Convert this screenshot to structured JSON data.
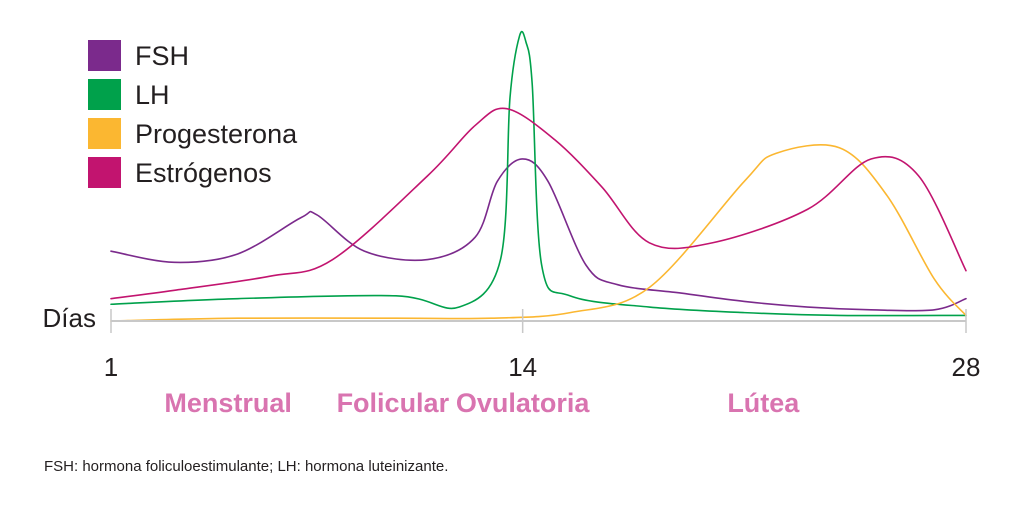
{
  "chart_data": {
    "type": "line",
    "title": "",
    "xlabel": "Días",
    "ylabel": "",
    "xlim": [
      1,
      28
    ],
    "ylim": [
      0,
      100
    ],
    "ticks": [
      {
        "value": 1,
        "label": "1"
      },
      {
        "value": 14,
        "label": "14"
      },
      {
        "value": 28,
        "label": "28"
      }
    ],
    "grid": false,
    "legend_position": "top-left",
    "series": [
      {
        "name": "FSH",
        "color": "#7b2a8c",
        "x": [
          1,
          3,
          5,
          7,
          7.5,
          9,
          11,
          12.5,
          13.2,
          14,
          14.8,
          16,
          17,
          19,
          21,
          23,
          25,
          27,
          28
        ],
        "y": [
          25,
          21,
          24,
          37,
          38,
          25,
          22,
          30,
          50,
          58,
          50,
          20,
          13,
          10,
          7,
          5,
          4,
          4,
          8
        ]
      },
      {
        "name": "LH",
        "color": "#00a14b",
        "x": [
          1,
          5,
          10,
          12,
          13.3,
          13.6,
          13.9,
          14.1,
          14.3,
          14.6,
          15.5,
          18,
          21,
          24,
          28
        ],
        "y": [
          6,
          8,
          9,
          5,
          22,
          80,
          102,
          100,
          85,
          20,
          9,
          5,
          3,
          2,
          2
        ]
      },
      {
        "name": "Progesterona",
        "color": "#fbb731",
        "x": [
          1,
          5,
          10,
          13,
          15.5,
          18,
          21,
          22,
          24,
          25.5,
          27,
          28
        ],
        "y": [
          0,
          1,
          1,
          1,
          3,
          12,
          50,
          60,
          62,
          45,
          15,
          2
        ]
      },
      {
        "name": "Estrógenos",
        "color": "#c2146f",
        "x": [
          1,
          3,
          6,
          8,
          11,
          12.5,
          13.5,
          15,
          16.5,
          18,
          20,
          23,
          25,
          26.5,
          28
        ],
        "y": [
          8,
          11,
          16,
          22,
          52,
          70,
          76,
          65,
          48,
          28,
          28,
          40,
          58,
          52,
          18
        ]
      }
    ]
  },
  "phases": [
    {
      "label": "Menstrual",
      "x": 4.7
    },
    {
      "label": "Folicular",
      "x": 9.9
    },
    {
      "label": "Ovulatoria",
      "x": 14
    },
    {
      "label": "Lútea",
      "x": 21.6
    }
  ],
  "phase_color": "#d974b0",
  "footnote": "FSH: hormona foliculoestimulante; LH: hormona luteinizante."
}
